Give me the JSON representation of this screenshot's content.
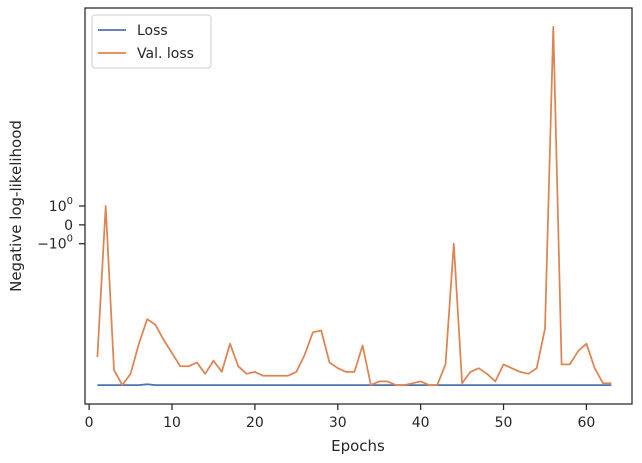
{
  "chart_data": {
    "type": "line",
    "xlabel": "Epochs",
    "ylabel": "Negative log-likelihood",
    "xlim": [
      -0.5,
      65.5
    ],
    "yscale": "symlog",
    "ylim": [
      -9.5,
      11.5
    ],
    "x_ticks": [
      0,
      10,
      20,
      30,
      40,
      50,
      60
    ],
    "y_ticks": [
      {
        "value": 1,
        "base": "10",
        "exp": "0",
        "text": ""
      },
      {
        "value": 0,
        "base": "",
        "exp": "",
        "text": "0"
      },
      {
        "value": -1,
        "base": "−10",
        "exp": "0",
        "text": ""
      }
    ],
    "grid": false,
    "legend_position": "upper left",
    "x": [
      1,
      2,
      3,
      4,
      5,
      6,
      7,
      8,
      9,
      10,
      11,
      12,
      13,
      14,
      15,
      16,
      17,
      18,
      19,
      20,
      21,
      22,
      23,
      24,
      25,
      26,
      27,
      28,
      29,
      30,
      31,
      32,
      33,
      34,
      35,
      36,
      37,
      38,
      39,
      40,
      41,
      42,
      43,
      44,
      45,
      46,
      47,
      48,
      49,
      50,
      51,
      52,
      53,
      54,
      55,
      56,
      57,
      58,
      59,
      60,
      61,
      62,
      63
    ],
    "series": [
      {
        "name": "Loss",
        "color": "#4c72b0",
        "values": [
          -8.5,
          -8.5,
          -8.5,
          -8.5,
          -8.5,
          -8.5,
          -8.45,
          -8.5,
          -8.5,
          -8.5,
          -8.5,
          -8.5,
          -8.5,
          -8.5,
          -8.5,
          -8.5,
          -8.5,
          -8.5,
          -8.5,
          -8.5,
          -8.5,
          -8.5,
          -8.5,
          -8.5,
          -8.5,
          -8.5,
          -8.5,
          -8.5,
          -8.5,
          -8.5,
          -8.5,
          -8.5,
          -8.5,
          -8.5,
          -8.5,
          -8.5,
          -8.5,
          -8.5,
          -8.5,
          -8.5,
          -8.5,
          -8.5,
          -8.5,
          -8.5,
          -8.5,
          -8.5,
          -8.5,
          -8.5,
          -8.5,
          -8.5,
          -8.5,
          -8.5,
          -8.5,
          -8.5,
          -8.5,
          -8.5,
          -8.5,
          -8.5,
          -8.5,
          -8.5,
          -8.5,
          -8.5,
          -8.5
        ]
      },
      {
        "name": "Val. loss",
        "color": "#dd8452",
        "values": [
          -7.0,
          1.0,
          -7.7,
          -8.5,
          -7.9,
          -6.3,
          -5.0,
          -5.3,
          -6.1,
          -6.8,
          -7.5,
          -7.5,
          -7.3,
          -7.9,
          -7.2,
          -7.8,
          -6.3,
          -7.5,
          -7.9,
          -7.8,
          -8.0,
          -8.0,
          -8.0,
          -8.0,
          -7.8,
          -6.9,
          -5.7,
          -5.6,
          -7.3,
          -7.6,
          -7.8,
          -7.8,
          -6.4,
          -8.5,
          -8.3,
          -8.3,
          -8.5,
          -8.5,
          -8.4,
          -8.3,
          -8.5,
          -8.5,
          -7.4,
          -1.0,
          -8.4,
          -7.8,
          -7.6,
          -7.9,
          -8.3,
          -7.4,
          -7.6,
          -7.8,
          -7.9,
          -7.6,
          -5.5,
          10.5,
          -7.4,
          -7.4,
          -6.7,
          -6.3,
          -7.6,
          -8.4,
          -8.4
        ]
      }
    ]
  }
}
